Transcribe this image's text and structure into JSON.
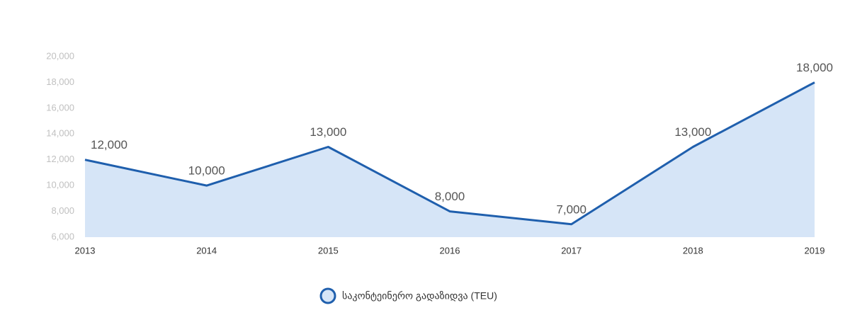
{
  "chart_data": {
    "type": "area",
    "categories": [
      "2013",
      "2014",
      "2015",
      "2016",
      "2017",
      "2018",
      "2019"
    ],
    "series": [
      {
        "name": "საკონტეინერო გადაზიდვა (TEU)",
        "color": "#1f5fad",
        "fill": "#d6e5f7",
        "values": [
          12000,
          10000,
          13000,
          8000,
          7000,
          13000,
          18000
        ],
        "value_labels": [
          "12,000",
          "10,000",
          "13,000",
          "8,000",
          "7,000",
          "13,000",
          "18,000"
        ]
      }
    ],
    "ylim": [
      6000,
      20000
    ],
    "yticks": [
      {
        "value": 6000,
        "label": "6,000"
      },
      {
        "value": 8000,
        "label": "8,000"
      },
      {
        "value": 10000,
        "label": "10,000"
      },
      {
        "value": 12000,
        "label": "12,000"
      },
      {
        "value": 14000,
        "label": "14,000"
      },
      {
        "value": 16000,
        "label": "16,000"
      },
      {
        "value": 18000,
        "label": "18,000"
      },
      {
        "value": 20000,
        "label": "20,000"
      }
    ],
    "grid": false
  }
}
